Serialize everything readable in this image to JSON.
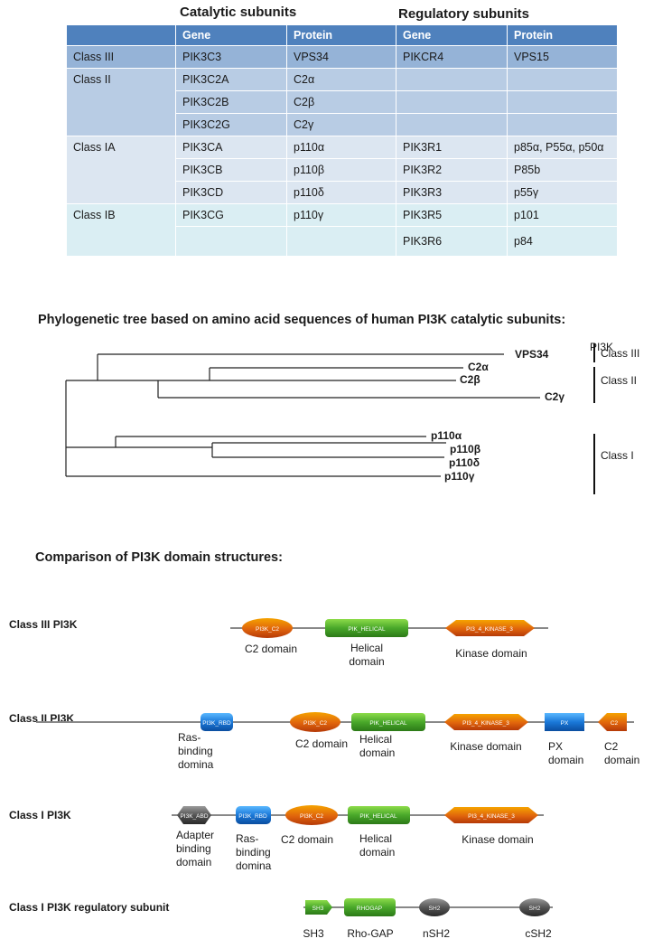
{
  "table": {
    "catalytic_header": "Catalytic subunits",
    "regulatory_header": "Regulatory subunits",
    "columns": [
      "",
      "Gene",
      "Protein",
      "Gene",
      "Protein"
    ],
    "rows": [
      {
        "cls": "Class III",
        "cgene": "PIK3C3",
        "cprot": "VPS34",
        "rgene": "PIKCR4",
        "rprot": "VPS15"
      },
      {
        "cls": "Class II",
        "cgene": "PIK3C2A",
        "cprot": "C2α",
        "rgene": "",
        "rprot": ""
      },
      {
        "cls": "",
        "cgene": "PIK3C2B",
        "cprot": "C2β",
        "rgene": "",
        "rprot": ""
      },
      {
        "cls": "",
        "cgene": "PIK3C2G",
        "cprot": "C2γ",
        "rgene": "",
        "rprot": ""
      },
      {
        "cls": "Class IA",
        "cgene": "PIK3CA",
        "cprot": "p110α",
        "rgene": "PIK3R1",
        "rprot": "p85α, P55α, p50α"
      },
      {
        "cls": "",
        "cgene": "PIK3CB",
        "cprot": "p110β",
        "rgene": "PIK3R2",
        "rprot": "P85b"
      },
      {
        "cls": "",
        "cgene": "PIK3CD",
        "cprot": "p110δ",
        "rgene": "PIK3R3",
        "rprot": "p55γ"
      },
      {
        "cls": "Class IB",
        "cgene": "PIK3CG",
        "cprot": "p110γ",
        "rgene": "PIK3R5",
        "rprot": "p101"
      },
      {
        "cls": "",
        "cgene": "",
        "cprot": "",
        "rgene": "PIK3R6",
        "rprot": "p84"
      }
    ]
  },
  "tree": {
    "title": "Phylogenetic tree based on amino acid sequences of human PI3K catalytic subunits:",
    "pi3k_label": "PI3K",
    "leaves": [
      "VPS34",
      "C2α",
      "C2β",
      "C2γ",
      "p110α",
      "p110β",
      "p110δ",
      "p110γ"
    ],
    "classes": [
      "Class III",
      "Class II",
      "Class I"
    ]
  },
  "domains": {
    "title": "Comparison of PI3K domain structures:",
    "rows": [
      {
        "label": "Class III PI3K",
        "shapes": [
          "PI3K_C2",
          "PIK_HELICAL",
          "PI3_4_KINASE_3"
        ],
        "captions": [
          "C2 domain",
          "Helical\ndomain",
          "Kinase domain"
        ]
      },
      {
        "label": "Class II PI3K",
        "shapes": [
          "PI3K_RBD",
          "PI3K_C2",
          "PIK_HELICAL",
          "PI3_4_KINASE_3",
          "PX",
          "C2"
        ],
        "captions": [
          "Ras-\nbinding\ndomina",
          "C2 domain",
          "Helical\ndomain",
          "Kinase domain",
          "PX\ndomain",
          "C2\ndomain"
        ]
      },
      {
        "label": "Class I PI3K",
        "shapes": [
          "PI3K_ABD",
          "PI3K_RBD",
          "PI3K_C2",
          "PIK_HELICAL",
          "PI3_4_KINASE_3"
        ],
        "captions": [
          "Adapter\nbinding\ndomain",
          "Ras-\nbinding\ndomina",
          "C2 domain",
          "Helical\ndomain",
          "Kinase domain"
        ]
      },
      {
        "label": "Class I PI3K regulatory subunit",
        "shapes": [
          "SH3",
          "RHOGAP",
          "SH2",
          "SH2"
        ],
        "captions": [
          "SH3",
          "Rho-GAP",
          "nSH2",
          "cSH2"
        ]
      }
    ]
  },
  "colors": {
    "header_blue": "#4f81bd",
    "class3_row": "#95b3d7",
    "class2_row": "#b8cce4",
    "class1a_row": "#dce6f1",
    "class1b_row": "#daeef3",
    "c2_orange": "#e36c0a",
    "helical_green": "#4ea72e",
    "rbd_blue": "#1f77d0",
    "px_blue": "#1565c0",
    "abd_gray": "#555555"
  }
}
